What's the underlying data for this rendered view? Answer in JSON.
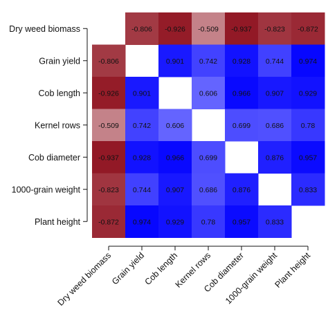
{
  "chart_data": {
    "type": "heatmap",
    "title": "",
    "xlabel": "",
    "ylabel": "",
    "variables": [
      "Dry weed biomass",
      "Grain yield",
      "Cob length",
      "Kernel rows",
      "Cob diameter",
      "1000-grain weight",
      "Plant height"
    ],
    "matrix": [
      [
        null,
        -0.806,
        -0.926,
        -0.509,
        -0.937,
        -0.823,
        -0.872
      ],
      [
        -0.806,
        null,
        0.901,
        0.742,
        0.928,
        0.744,
        0.974
      ],
      [
        -0.926,
        0.901,
        null,
        0.606,
        0.966,
        0.907,
        0.929
      ],
      [
        -0.509,
        0.742,
        0.606,
        null,
        0.699,
        0.686,
        0.78
      ],
      [
        -0.937,
        0.928,
        0.966,
        0.699,
        null,
        0.876,
        0.957
      ],
      [
        -0.823,
        0.744,
        0.907,
        0.686,
        0.876,
        null,
        0.833
      ],
      [
        -0.872,
        0.974,
        0.929,
        0.78,
        0.957,
        0.833,
        null
      ]
    ],
    "color_scale": {
      "negative": "#8b0a17",
      "zero": "#ffffff",
      "positive": "#0000ff",
      "range": [
        -1,
        1
      ]
    }
  }
}
